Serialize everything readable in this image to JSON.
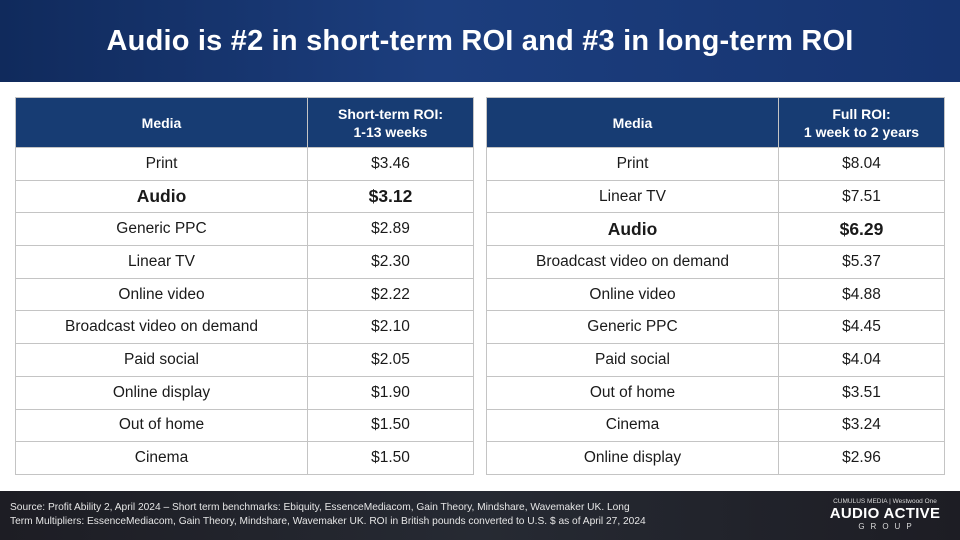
{
  "title": "Audio is #2 in short-term ROI and #3 in long-term ROI",
  "short_term_table": {
    "header_media": "Media",
    "header_value_line1": "Short-term ROI:",
    "header_value_line2": "1-13 weeks",
    "rows": [
      {
        "media": "Print",
        "value": "$3.46"
      },
      {
        "media": "Audio",
        "value": "$3.12",
        "highlight": true
      },
      {
        "media": "Generic PPC",
        "value": "$2.89"
      },
      {
        "media": "Linear TV",
        "value": "$2.30"
      },
      {
        "media": "Online video",
        "value": "$2.22"
      },
      {
        "media": "Broadcast video on demand",
        "value": "$2.10"
      },
      {
        "media": "Paid social",
        "value": "$2.05"
      },
      {
        "media": "Online display",
        "value": "$1.90"
      },
      {
        "media": "Out of home",
        "value": "$1.50"
      },
      {
        "media": "Cinema",
        "value": "$1.50"
      }
    ]
  },
  "full_roi_table": {
    "header_media": "Media",
    "header_value_line1": "Full ROI:",
    "header_value_line2": "1 week to 2 years",
    "rows": [
      {
        "media": "Print",
        "value": "$8.04"
      },
      {
        "media": "Linear TV",
        "value": "$7.51"
      },
      {
        "media": "Audio",
        "value": "$6.29",
        "highlight": true
      },
      {
        "media": "Broadcast video on demand",
        "value": "$5.37"
      },
      {
        "media": "Online video",
        "value": "$4.88"
      },
      {
        "media": "Generic PPC",
        "value": "$4.45"
      },
      {
        "media": "Paid social",
        "value": "$4.04"
      },
      {
        "media": "Out of home",
        "value": "$3.51"
      },
      {
        "media": "Cinema",
        "value": "$3.24"
      },
      {
        "media": "Online display",
        "value": "$2.96"
      }
    ]
  },
  "footer": {
    "source_line1": "Source: Profit Ability 2, April 2024 – Short term benchmarks: Ebiquity, EssenceMediacom, Gain Theory, Mindshare, Wavemaker UK. Long",
    "source_line2": "Term Multipliers: EssenceMediacom, Gain Theory, Mindshare, Wavemaker UK. ROI in British pounds converted to U.S. $ as of April 27, 2024"
  },
  "logo": {
    "top_line": "CUMULUS MEDIA | Westwood One",
    "main": "AUDIO ACTIVE",
    "sub": "GROUP"
  },
  "colors": {
    "header_bg": "#1c3e7e",
    "table_header_bg": "#173c73",
    "footer_bg": "#262a33"
  }
}
